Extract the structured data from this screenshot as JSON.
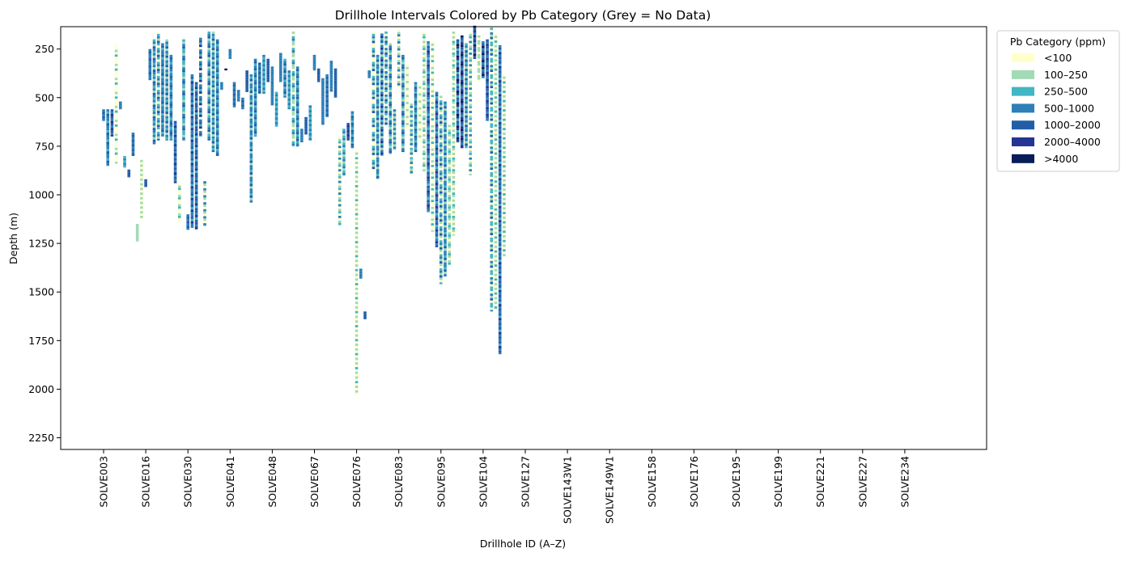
{
  "chart_data": {
    "type": "bar",
    "title": "Drillhole Intervals Colored by Pb Category (Grey = No Data)",
    "xlabel": "Drillhole ID (A–Z)",
    "ylabel": "Depth (m)",
    "ylim": [
      2310,
      135
    ],
    "y_inverted": true,
    "yticks": [
      250,
      500,
      750,
      1000,
      1250,
      1500,
      1750,
      2000,
      2250
    ],
    "x_count": 192,
    "xtick_index": [
      0,
      10,
      20,
      30,
      40,
      50,
      60,
      70,
      80,
      90,
      100,
      110,
      120,
      130,
      140,
      150,
      160,
      170,
      180,
      190
    ],
    "xtick_labels": [
      "SOLVE003",
      "SOLVE016",
      "SOLVE030",
      "SOLVE041",
      "SOLVE048",
      "SOLVE067",
      "SOLVE076",
      "SOLVE083",
      "SOLVE095",
      "SOLVE104",
      "SOLVE127",
      "SOLVE143W1",
      "SOLVE149W1",
      "SOLVE158",
      "SOLVE176",
      "SOLVE195",
      "SOLVE199",
      "SOLVE221",
      "SOLVE227",
      "SOLVE234"
    ],
    "legend": {
      "title": "Pb Category (ppm)",
      "placement": "outside-top-right",
      "entries": [
        {
          "label": "<100",
          "color": "#ffffcc"
        },
        {
          "label": "100–250",
          "color": "#a1dab4"
        },
        {
          "label": "250–500",
          "color": "#41b6c4"
        },
        {
          "label": "500–1000",
          "color": "#2c7fb8"
        },
        {
          "label": "1000–2000",
          "color": "#225ea8"
        },
        {
          "label": "2000–4000",
          "color": "#253494"
        },
        {
          "label": ">4000",
          "color": "#081d58"
        }
      ]
    },
    "no_data_color": "#bdbdbd",
    "series": [
      {
        "hole": 0,
        "from": 560,
        "to": 620,
        "pattern": [
          3,
          4
        ]
      },
      {
        "hole": 1,
        "from": 560,
        "to": 850,
        "pattern": [
          3,
          2,
          4,
          3
        ]
      },
      {
        "hole": 2,
        "from": 560,
        "to": 700,
        "pattern": [
          4,
          3,
          5
        ]
      },
      {
        "hole": 3,
        "from": 230,
        "to": 840,
        "pattern": [
          0,
          0,
          1,
          0,
          2,
          0
        ]
      },
      {
        "hole": 4,
        "from": 520,
        "to": 560,
        "pattern": [
          3
        ]
      },
      {
        "hole": 5,
        "from": 800,
        "to": 860,
        "pattern": [
          2,
          3
        ]
      },
      {
        "hole": 6,
        "from": 870,
        "to": 910,
        "pattern": [
          4
        ]
      },
      {
        "hole": 7,
        "from": 680,
        "to": 800,
        "pattern": [
          3,
          4
        ]
      },
      {
        "hole": 8,
        "from": 1150,
        "to": 1240,
        "pattern": [
          1
        ]
      },
      {
        "hole": 9,
        "from": 820,
        "to": 1130,
        "pattern": [
          1,
          0,
          1,
          0
        ]
      },
      {
        "hole": 10,
        "from": 920,
        "to": 960,
        "pattern": [
          4
        ]
      },
      {
        "hole": 11,
        "from": 250,
        "to": 410,
        "pattern": [
          3,
          4,
          3
        ]
      },
      {
        "hole": 12,
        "from": 200,
        "to": 740,
        "pattern": [
          2,
          3,
          1,
          4,
          3
        ]
      },
      {
        "hole": 13,
        "from": 160,
        "to": 720,
        "pattern": [
          0,
          2,
          3,
          1,
          4,
          2
        ]
      },
      {
        "hole": 14,
        "from": 220,
        "to": 700,
        "pattern": [
          3,
          4,
          2,
          3
        ]
      },
      {
        "hole": 15,
        "from": 200,
        "to": 720,
        "pattern": [
          1,
          3,
          2,
          4
        ]
      },
      {
        "hole": 16,
        "from": 280,
        "to": 720,
        "pattern": [
          3,
          4,
          3,
          2
        ]
      },
      {
        "hole": 17,
        "from": 620,
        "to": 940,
        "pattern": [
          4,
          3,
          5,
          3
        ]
      },
      {
        "hole": 18,
        "from": 940,
        "to": 1140,
        "pattern": [
          0,
          1,
          2,
          0
        ]
      },
      {
        "hole": 19,
        "from": 200,
        "to": 720,
        "pattern": [
          2,
          1,
          3,
          4,
          2
        ]
      },
      {
        "hole": 20,
        "from": 1100,
        "to": 1180,
        "pattern": [
          3,
          4
        ]
      },
      {
        "hole": 21,
        "from": 380,
        "to": 1170,
        "pattern": [
          3,
          4,
          2,
          5,
          3
        ]
      },
      {
        "hole": 22,
        "from": 420,
        "to": 1180,
        "pattern": [
          4,
          3,
          5,
          2,
          4
        ]
      },
      {
        "hole": 23,
        "from": 180,
        "to": 700,
        "pattern": [
          0,
          3,
          4,
          2,
          5
        ]
      },
      {
        "hole": 24,
        "from": 930,
        "to": 1160,
        "pattern": [
          3,
          1,
          0
        ]
      },
      {
        "hole": 25,
        "from": 160,
        "to": 720,
        "pattern": [
          2,
          3,
          4,
          1
        ]
      },
      {
        "hole": 26,
        "from": 160,
        "to": 780,
        "pattern": [
          1,
          3,
          2,
          4
        ]
      },
      {
        "hole": 27,
        "from": 200,
        "to": 800,
        "pattern": [
          3,
          4,
          2
        ]
      },
      {
        "hole": 28,
        "from": 420,
        "to": 460,
        "pattern": [
          3
        ]
      },
      {
        "hole": 29,
        "from": 350,
        "to": 360,
        "pattern": [
          6
        ]
      },
      {
        "hole": 30,
        "from": 250,
        "to": 300,
        "pattern": [
          3
        ]
      },
      {
        "hole": 31,
        "from": 420,
        "to": 550,
        "pattern": [
          3,
          4
        ]
      },
      {
        "hole": 32,
        "from": 460,
        "to": 520,
        "pattern": [
          3
        ]
      },
      {
        "hole": 33,
        "from": 500,
        "to": 560,
        "pattern": [
          3,
          4
        ]
      },
      {
        "hole": 34,
        "from": 360,
        "to": 470,
        "pattern": [
          4
        ]
      },
      {
        "hole": 35,
        "from": 380,
        "to": 1040,
        "pattern": [
          3,
          2,
          4,
          1,
          3
        ]
      },
      {
        "hole": 36,
        "from": 300,
        "to": 700,
        "pattern": [
          3,
          4,
          2
        ]
      },
      {
        "hole": 37,
        "from": 320,
        "to": 480,
        "pattern": [
          4,
          3
        ]
      },
      {
        "hole": 38,
        "from": 280,
        "to": 480,
        "pattern": [
          3,
          2
        ]
      },
      {
        "hole": 39,
        "from": 300,
        "to": 420,
        "pattern": [
          4
        ]
      },
      {
        "hole": 40,
        "from": 340,
        "to": 540,
        "pattern": [
          3
        ]
      },
      {
        "hole": 41,
        "from": 470,
        "to": 650,
        "pattern": [
          2,
          3
        ]
      },
      {
        "hole": 42,
        "from": 270,
        "to": 420,
        "pattern": [
          3
        ]
      },
      {
        "hole": 43,
        "from": 300,
        "to": 500,
        "pattern": [
          2,
          3,
          4
        ]
      },
      {
        "hole": 44,
        "from": 360,
        "to": 560,
        "pattern": [
          3,
          2
        ]
      },
      {
        "hole": 45,
        "from": 160,
        "to": 750,
        "pattern": [
          1,
          0,
          2,
          3,
          1
        ]
      },
      {
        "hole": 46,
        "from": 340,
        "to": 750,
        "pattern": [
          3,
          4,
          2
        ]
      },
      {
        "hole": 47,
        "from": 660,
        "to": 730,
        "pattern": [
          3
        ]
      },
      {
        "hole": 48,
        "from": 600,
        "to": 690,
        "pattern": [
          4
        ]
      },
      {
        "hole": 49,
        "from": 540,
        "to": 720,
        "pattern": [
          3,
          2
        ]
      },
      {
        "hole": 50,
        "from": 280,
        "to": 360,
        "pattern": [
          3
        ]
      },
      {
        "hole": 51,
        "from": 350,
        "to": 420,
        "pattern": [
          4
        ]
      },
      {
        "hole": 52,
        "from": 400,
        "to": 640,
        "pattern": [
          3
        ]
      },
      {
        "hole": 53,
        "from": 380,
        "to": 600,
        "pattern": [
          3,
          4
        ]
      },
      {
        "hole": 54,
        "from": 310,
        "to": 470,
        "pattern": [
          3
        ]
      },
      {
        "hole": 55,
        "from": 350,
        "to": 500,
        "pattern": [
          4
        ]
      },
      {
        "hole": 56,
        "from": 700,
        "to": 1160,
        "pattern": [
          0,
          1,
          2,
          0,
          3
        ]
      },
      {
        "hole": 57,
        "from": 660,
        "to": 900,
        "pattern": [
          2,
          3,
          1
        ]
      },
      {
        "hole": 58,
        "from": 630,
        "to": 720,
        "pattern": [
          4,
          5
        ]
      },
      {
        "hole": 59,
        "from": 570,
        "to": 760,
        "pattern": [
          3,
          2,
          4
        ]
      },
      {
        "hole": 60,
        "from": 770,
        "to": 2030,
        "pattern": [
          0,
          1,
          0,
          2,
          0,
          1
        ]
      },
      {
        "hole": 61,
        "from": 1380,
        "to": 1430,
        "pattern": [
          3
        ]
      },
      {
        "hole": 62,
        "from": 1600,
        "to": 1640,
        "pattern": [
          4
        ]
      },
      {
        "hole": 63,
        "from": 360,
        "to": 400,
        "pattern": [
          3
        ]
      },
      {
        "hole": 64,
        "from": 160,
        "to": 880,
        "pattern": [
          0,
          2,
          3,
          1,
          4,
          0
        ]
      },
      {
        "hole": 65,
        "from": 280,
        "to": 920,
        "pattern": [
          3,
          2,
          4,
          1,
          3
        ]
      },
      {
        "hole": 66,
        "from": 170,
        "to": 800,
        "pattern": [
          3,
          5,
          2,
          4,
          1
        ]
      },
      {
        "hole": 67,
        "from": 160,
        "to": 640,
        "pattern": [
          2,
          0,
          3,
          1,
          4
        ]
      },
      {
        "hole": 68,
        "from": 220,
        "to": 790,
        "pattern": [
          1,
          3,
          4,
          2
        ]
      },
      {
        "hole": 69,
        "from": 560,
        "to": 770,
        "pattern": [
          3,
          1
        ]
      },
      {
        "hole": 70,
        "from": 150,
        "to": 450,
        "pattern": [
          0,
          1,
          3
        ]
      },
      {
        "hole": 71,
        "from": 280,
        "to": 780,
        "pattern": [
          3,
          4,
          2,
          1
        ]
      },
      {
        "hole": 72,
        "from": 330,
        "to": 660,
        "pattern": [
          0,
          1,
          0
        ]
      },
      {
        "hole": 73,
        "from": 530,
        "to": 900,
        "pattern": [
          1,
          3,
          0,
          2
        ]
      },
      {
        "hole": 74,
        "from": 420,
        "to": 780,
        "pattern": [
          3,
          2,
          4
        ]
      },
      {
        "hole": 75,
        "from": 430,
        "to": 720,
        "pattern": [
          0,
          1,
          0
        ]
      },
      {
        "hole": 76,
        "from": 160,
        "to": 880,
        "pattern": [
          0,
          1,
          2,
          0,
          1
        ]
      },
      {
        "hole": 77,
        "from": 210,
        "to": 1090,
        "pattern": [
          3,
          2,
          4,
          3,
          5,
          4
        ]
      },
      {
        "hole": 78,
        "from": 210,
        "to": 1190,
        "pattern": [
          0,
          1,
          0,
          2,
          0
        ]
      },
      {
        "hole": 79,
        "from": 470,
        "to": 1270,
        "pattern": [
          3,
          4,
          2,
          3,
          5
        ]
      },
      {
        "hole": 80,
        "from": 490,
        "to": 1460,
        "pattern": [
          1,
          0,
          2,
          3,
          1,
          4
        ]
      },
      {
        "hole": 81,
        "from": 520,
        "to": 1420,
        "pattern": [
          3,
          2,
          4,
          1,
          3
        ]
      },
      {
        "hole": 82,
        "from": 640,
        "to": 1360,
        "pattern": [
          1,
          0,
          1,
          2
        ]
      },
      {
        "hole": 83,
        "from": 160,
        "to": 1210,
        "pattern": [
          1,
          0,
          1,
          0,
          2
        ]
      },
      {
        "hole": 84,
        "from": 200,
        "to": 730,
        "pattern": [
          4,
          3,
          6,
          5,
          2
        ]
      },
      {
        "hole": 85,
        "from": 180,
        "to": 760,
        "pattern": [
          6,
          4,
          3,
          5
        ]
      },
      {
        "hole": 86,
        "from": 220,
        "to": 760,
        "pattern": [
          2,
          3,
          1,
          4
        ]
      },
      {
        "hole": 87,
        "from": 160,
        "to": 900,
        "pattern": [
          0,
          1,
          2,
          0,
          3
        ]
      },
      {
        "hole": 88,
        "from": 130,
        "to": 300,
        "pattern": [
          6,
          4,
          5,
          3
        ]
      },
      {
        "hole": 89,
        "from": 180,
        "to": 420,
        "pattern": [
          1,
          0,
          1
        ]
      },
      {
        "hole": 90,
        "from": 210,
        "to": 400,
        "pattern": [
          3,
          4,
          6
        ]
      },
      {
        "hole": 91,
        "from": 200,
        "to": 620,
        "pattern": [
          4,
          3,
          5
        ]
      },
      {
        "hole": 92,
        "from": 140,
        "to": 1600,
        "pattern": [
          2,
          0,
          3,
          1,
          4,
          0,
          2
        ]
      },
      {
        "hole": 93,
        "from": 170,
        "to": 1590,
        "pattern": [
          0,
          1,
          0,
          2,
          0,
          1
        ]
      },
      {
        "hole": 94,
        "from": 230,
        "to": 1820,
        "pattern": [
          3,
          4,
          2,
          5,
          3,
          4
        ]
      },
      {
        "hole": 95,
        "from": 380,
        "to": 1320,
        "pattern": [
          0,
          1,
          0,
          2
        ]
      }
    ]
  }
}
